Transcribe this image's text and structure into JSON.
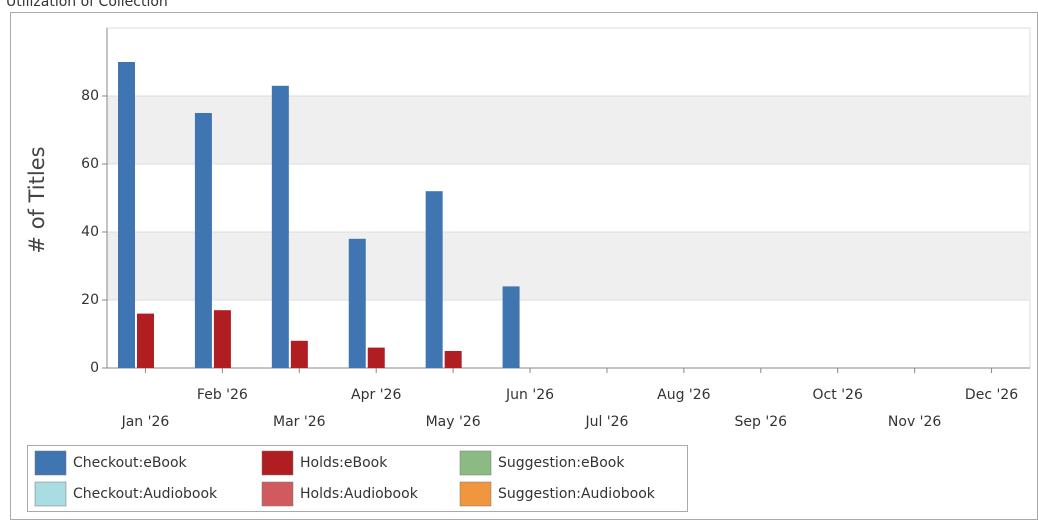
{
  "chart_data": {
    "type": "bar",
    "title": "Utilization of Collection",
    "ylabel": "# of Titles",
    "categories": [
      "Jan '26",
      "Feb '26",
      "Mar '26",
      "Apr '26",
      "May '26",
      "Jun '26",
      "Jul '26",
      "Aug '26",
      "Sep '26",
      "Oct '26",
      "Nov '26",
      "Dec '26"
    ],
    "series": [
      {
        "name": "Checkout:eBook",
        "color": "#3f75b0",
        "values": [
          90,
          75,
          83,
          38,
          52,
          24,
          0,
          0,
          0,
          0,
          0,
          0
        ]
      },
      {
        "name": "Holds:eBook",
        "color": "#b01e22",
        "values": [
          16,
          17,
          8,
          6,
          5,
          0,
          0,
          0,
          0,
          0,
          0,
          0
        ]
      },
      {
        "name": "Suggestion:eBook",
        "color": "#8bbb82",
        "values": [
          0,
          0,
          0,
          0,
          0,
          0,
          0,
          0,
          0,
          0,
          0,
          0
        ]
      },
      {
        "name": "Checkout:Audiobook",
        "color": "#a9dce3",
        "values": [
          0,
          0,
          0,
          0,
          0,
          0,
          0,
          0,
          0,
          0,
          0,
          0
        ]
      },
      {
        "name": "Holds:Audiobook",
        "color": "#d05a5e",
        "values": [
          0,
          0,
          0,
          0,
          0,
          0,
          0,
          0,
          0,
          0,
          0,
          0
        ]
      },
      {
        "name": "Suggestion:Audiobook",
        "color": "#f0963e",
        "values": [
          0,
          0,
          0,
          0,
          0,
          0,
          0,
          0,
          0,
          0,
          0,
          0
        ]
      }
    ],
    "ylim": [
      0,
      100
    ],
    "yticks": [
      0,
      20,
      40,
      60,
      80
    ],
    "grid": true,
    "legend": "bottom-left"
  }
}
